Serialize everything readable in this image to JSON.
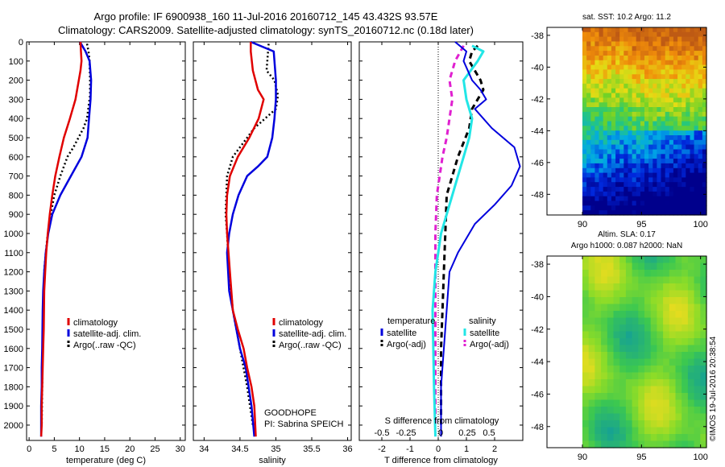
{
  "header": {
    "line1": "Argo profile: IF 6900938_160 11-Jul-2016 20160712_145 43.432S 93.57E",
    "line2": "Climatology: CARS2009. Satellite-adjusted climatology: synTS_20160712.nc (0.18d later)"
  },
  "side_label": "©IMOS 19-Jul-2016 20:38:54",
  "colors": {
    "climatology": "#e00000",
    "satellite": "#0000dd",
    "argo": "#000000",
    "satellite_salinity": "#22e6e6",
    "argo_salinity": "#e020d0"
  },
  "chart_data": [
    {
      "type": "line",
      "id": "temperature",
      "xlabel": "temperature (deg C)",
      "ylabel": "",
      "xlim": [
        -0.5,
        31
      ],
      "ylim": [
        2080,
        0
      ],
      "xticks": [
        0,
        5,
        10,
        15,
        20,
        25,
        30
      ],
      "yticks": [
        0,
        100,
        200,
        300,
        400,
        500,
        600,
        700,
        800,
        900,
        1000,
        1100,
        1200,
        1300,
        1400,
        1500,
        1600,
        1700,
        1800,
        1900,
        2000
      ],
      "legend": [
        "climatology",
        "satellite-adj. clim.",
        "Argo(..raw -QC)"
      ],
      "series": [
        {
          "name": "climatology",
          "x": [
            10.2,
            10.3,
            10.4,
            10.2,
            9.2,
            8.1,
            6.9,
            6.0,
            5.2,
            4.6,
            4.1,
            3.7,
            3.4,
            3.2,
            3.0,
            2.9,
            2.8,
            2.7,
            2.6,
            2.5,
            2.5,
            2.4
          ],
          "y": [
            0,
            50,
            100,
            150,
            300,
            400,
            500,
            600,
            700,
            800,
            900,
            1000,
            1100,
            1200,
            1300,
            1500,
            1600,
            1700,
            1800,
            1900,
            2000,
            2060
          ]
        },
        {
          "name": "satellite-adj. clim.",
          "x": [
            10.1,
            11.2,
            12.0,
            12.3,
            12.2,
            11.9,
            11.6,
            10.4,
            8.3,
            6.2,
            4.6,
            3.8,
            3.3,
            3.0,
            2.8,
            2.7,
            2.6,
            2.5,
            2.5,
            2.4,
            2.4
          ],
          "y": [
            0,
            50,
            100,
            200,
            300,
            400,
            500,
            600,
            700,
            800,
            900,
            1000,
            1100,
            1200,
            1300,
            1400,
            1600,
            1700,
            1800,
            1900,
            2060
          ]
        },
        {
          "name": "Argo(..raw -QC)",
          "x": [
            11.5,
            11.8,
            12.0,
            12.1,
            12.1,
            11.5,
            10.8,
            9.8,
            8.8,
            7.6,
            6.2,
            5.0,
            4.3,
            3.7,
            3.3,
            3.0,
            2.8,
            2.7,
            2.6,
            2.5
          ],
          "y": [
            10,
            50,
            100,
            200,
            280,
            400,
            450,
            500,
            550,
            600,
            700,
            800,
            900,
            1000,
            1100,
            1200,
            1400,
            1600,
            1800,
            2000
          ]
        }
      ]
    },
    {
      "type": "line",
      "id": "salinity",
      "xlabel": "salinity",
      "ylabel": "",
      "xlim": [
        33.85,
        36.05
      ],
      "ylim": [
        2080,
        0
      ],
      "xticks": [
        34,
        34.5,
        35,
        35.5,
        36
      ],
      "xticklabels": [
        "34",
        "34.5",
        "35",
        "35.5",
        "36"
      ],
      "legend": [
        "climatology",
        "satellite-adj. clim.",
        "Argo(..raw -QC)"
      ],
      "annotation": [
        "GOODHOPE",
        "PI: Sabrina SPEICH"
      ],
      "series": [
        {
          "name": "climatology",
          "x": [
            34.65,
            34.65,
            34.68,
            34.75,
            34.83,
            34.76,
            34.63,
            34.47,
            34.36,
            34.32,
            34.31,
            34.32,
            34.36,
            34.4,
            34.47,
            34.55,
            34.6,
            34.66,
            34.7,
            34.72
          ],
          "y": [
            0,
            50,
            150,
            250,
            300,
            400,
            500,
            600,
            700,
            800,
            900,
            1000,
            1200,
            1400,
            1500,
            1600,
            1700,
            1800,
            1900,
            2060
          ]
        },
        {
          "name": "satellite-adj. clim.",
          "x": [
            34.65,
            34.97,
            35.0,
            35.0,
            34.98,
            34.95,
            34.88,
            34.75,
            34.6,
            34.48,
            34.4,
            34.35,
            34.32,
            34.35,
            34.4,
            34.5,
            34.58,
            34.66,
            34.7
          ],
          "y": [
            0,
            50,
            200,
            300,
            400,
            500,
            600,
            650,
            700,
            800,
            900,
            1000,
            1100,
            1300,
            1400,
            1600,
            1700,
            1900,
            2060
          ]
        },
        {
          "name": "Argo(..raw -QC)",
          "x": [
            34.9,
            34.87,
            34.98,
            35.03,
            35.0,
            34.85,
            34.7,
            34.6,
            34.5,
            34.4,
            34.32,
            34.3,
            34.32,
            34.35,
            34.4,
            34.5,
            34.6,
            34.68
          ],
          "y": [
            10,
            150,
            200,
            280,
            350,
            400,
            450,
            500,
            550,
            600,
            700,
            900,
            1000,
            1200,
            1400,
            1600,
            1800,
            2000
          ]
        }
      ]
    },
    {
      "type": "line",
      "id": "difference",
      "xlabel": "T difference from climatology",
      "top_axis_label": "S difference from climatology",
      "ylabel": "",
      "xlim": [
        -2.8,
        3.0
      ],
      "ylim": [
        2080,
        0
      ],
      "xticks": [
        -2,
        -1,
        0,
        1,
        2
      ],
      "top_ticklabels": [
        "-0.5",
        "-0.25",
        "0",
        "0.25",
        "0.5"
      ],
      "legend_titles": [
        "temperature",
        "salinity"
      ],
      "legend": [
        "satellite",
        "Argo(-adj)",
        "satellite",
        "Argo(-adj)"
      ],
      "series": [
        {
          "name": "satellite",
          "x": [
            0.6,
            1.0,
            0.9,
            1.2,
            1.5,
            1.7,
            1.3,
            1.9,
            2.7,
            2.9,
            2.6,
            2.0,
            1.3,
            0.7,
            0.4,
            0.3,
            0.2,
            0.1,
            0.1,
            0.1
          ],
          "y": [
            0,
            50,
            100,
            200,
            250,
            300,
            350,
            450,
            550,
            650,
            750,
            850,
            950,
            1100,
            1200,
            1400,
            1600,
            1800,
            1900,
            2060
          ]
        },
        {
          "name": "Argo(-adj)",
          "x": [
            1.4,
            1.2,
            1.1,
            1.3,
            1.5,
            1.6,
            1.2,
            1.1,
            0.7,
            0.3,
            0.25,
            0.2,
            0.15,
            0.1,
            0.1,
            0.1
          ],
          "y": [
            20,
            50,
            100,
            150,
            200,
            250,
            350,
            450,
            600,
            800,
            1000,
            1200,
            1400,
            1600,
            1800,
            2000
          ]
        },
        {
          "name": "satellite (salinity)",
          "x": [
            1.2,
            1.6,
            1.4,
            0.9,
            1.0,
            1.2,
            1.1,
            0.9,
            0.7,
            0.5,
            0.3,
            0.1,
            -0.1,
            -0.2,
            -0.15,
            -0.1
          ],
          "y": [
            20,
            50,
            100,
            200,
            300,
            400,
            500,
            600,
            700,
            800,
            900,
            1000,
            1200,
            1400,
            1800,
            2060
          ]
        },
        {
          "name": "Argo(-adj) (salinity)",
          "x": [
            0.9,
            0.6,
            0.4,
            0.5,
            0.4,
            0.3,
            0.15,
            0.05,
            -0.05,
            -0.1,
            -0.1,
            -0.1
          ],
          "y": [
            20,
            100,
            200,
            300,
            400,
            500,
            600,
            700,
            800,
            1000,
            1400,
            2000
          ]
        }
      ]
    },
    {
      "type": "heatmap",
      "id": "sst_map",
      "title": "sat. SST: 10.2  Argo: 11.2",
      "xlim": [
        87,
        100.5
      ],
      "ylim": [
        -49.3,
        -37.5
      ],
      "xticks": [
        90,
        95,
        100
      ],
      "yticks": [
        -38,
        -40,
        -42,
        -44,
        -46,
        -48
      ],
      "data_xlim": [
        90,
        100.5
      ]
    },
    {
      "type": "heatmap",
      "id": "sla_map",
      "title": "Altim. SLA: 0.17",
      "subtitle": "Argo h1000: 0.087 h2000: NaN",
      "xlim": [
        87,
        100.5
      ],
      "ylim": [
        -49.3,
        -37.5
      ],
      "xticks": [
        90,
        95,
        100
      ],
      "yticks": [
        -38,
        -40,
        -42,
        -44,
        -46,
        -48
      ],
      "data_xlim": [
        90,
        100.5
      ]
    }
  ]
}
